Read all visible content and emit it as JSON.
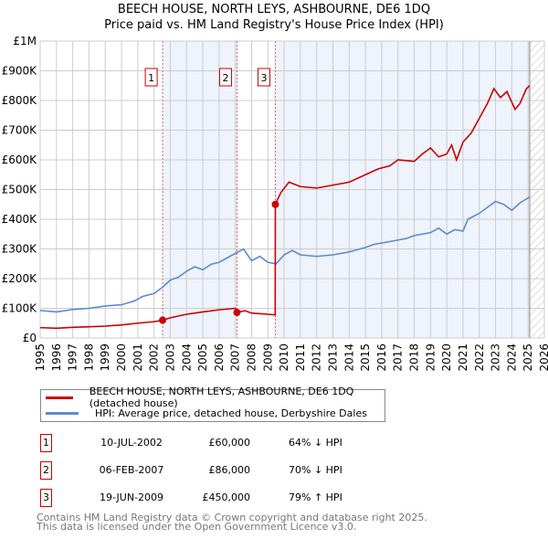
{
  "title": "BEECH HOUSE, NORTH LEYS, ASHBOURNE, DE6 1DQ",
  "subtitle": "Price paid vs. HM Land Registry's House Price Index (HPI)",
  "chart_data": {
    "type": "line",
    "xlim": [
      1995,
      2026
    ],
    "ylim": [
      0,
      1000000
    ],
    "y_ticks": [
      {
        "v": 0,
        "label": "£0"
      },
      {
        "v": 100000,
        "label": "£100K"
      },
      {
        "v": 200000,
        "label": "£200K"
      },
      {
        "v": 300000,
        "label": "£300K"
      },
      {
        "v": 400000,
        "label": "£400K"
      },
      {
        "v": 500000,
        "label": "£500K"
      },
      {
        "v": 600000,
        "label": "£600K"
      },
      {
        "v": 700000,
        "label": "£700K"
      },
      {
        "v": 800000,
        "label": "£800K"
      },
      {
        "v": 900000,
        "label": "£900K"
      },
      {
        "v": 1000000,
        "label": "£1M"
      }
    ],
    "x_ticks": [
      "1995",
      "1996",
      "1997",
      "1998",
      "1999",
      "2000",
      "2001",
      "2002",
      "2003",
      "2004",
      "2005",
      "2006",
      "2007",
      "2008",
      "2009",
      "2010",
      "2011",
      "2012",
      "2013",
      "2014",
      "2015",
      "2016",
      "2017",
      "2018",
      "2019",
      "2020",
      "2021",
      "2022",
      "2023",
      "2024",
      "2025",
      "2026"
    ],
    "series": [
      {
        "name": "BEECH HOUSE, NORTH LEYS, ASHBOURNE, DE6 1DQ (detached house)",
        "color": "#cc0000",
        "points": [
          [
            1995,
            35000
          ],
          [
            1996,
            33000
          ],
          [
            1997,
            36000
          ],
          [
            1998,
            38000
          ],
          [
            1999,
            40000
          ],
          [
            2000,
            44000
          ],
          [
            2001,
            50000
          ],
          [
            2002,
            55000
          ],
          [
            2002.53,
            60000
          ],
          [
            2003,
            68000
          ],
          [
            2004,
            80000
          ],
          [
            2005,
            88000
          ],
          [
            2006,
            95000
          ],
          [
            2007,
            100000
          ],
          [
            2007.1,
            86000
          ],
          [
            2007.6,
            92000
          ],
          [
            2008,
            84000
          ],
          [
            2009,
            80000
          ],
          [
            2009.45,
            78000
          ],
          [
            2009.46,
            450000
          ],
          [
            2009.8,
            490000
          ],
          [
            2010.3,
            525000
          ],
          [
            2011,
            510000
          ],
          [
            2012,
            505000
          ],
          [
            2013,
            515000
          ],
          [
            2014,
            525000
          ],
          [
            2015,
            550000
          ],
          [
            2015.8,
            570000
          ],
          [
            2016.5,
            580000
          ],
          [
            2017,
            600000
          ],
          [
            2018,
            595000
          ],
          [
            2018.5,
            620000
          ],
          [
            2019,
            640000
          ],
          [
            2019.5,
            610000
          ],
          [
            2020,
            620000
          ],
          [
            2020.3,
            650000
          ],
          [
            2020.6,
            600000
          ],
          [
            2021,
            660000
          ],
          [
            2021.5,
            690000
          ],
          [
            2022,
            740000
          ],
          [
            2022.5,
            790000
          ],
          [
            2022.9,
            840000
          ],
          [
            2023.3,
            810000
          ],
          [
            2023.7,
            830000
          ],
          [
            2024.2,
            770000
          ],
          [
            2024.5,
            790000
          ],
          [
            2024.9,
            840000
          ],
          [
            2025.1,
            850000
          ]
        ]
      },
      {
        "name": "HPI: Average price, detached house, Derbyshire Dales",
        "color": "#5b8bd0",
        "points": [
          [
            1995,
            93000
          ],
          [
            1996,
            88000
          ],
          [
            1997,
            96000
          ],
          [
            1998,
            100000
          ],
          [
            1999,
            108000
          ],
          [
            2000,
            112000
          ],
          [
            2000.8,
            125000
          ],
          [
            2001.3,
            140000
          ],
          [
            2002,
            150000
          ],
          [
            2002.5,
            170000
          ],
          [
            2003,
            195000
          ],
          [
            2003.5,
            205000
          ],
          [
            2004,
            225000
          ],
          [
            2004.5,
            240000
          ],
          [
            2005,
            230000
          ],
          [
            2005.5,
            248000
          ],
          [
            2006,
            255000
          ],
          [
            2006.5,
            270000
          ],
          [
            2007,
            285000
          ],
          [
            2007.5,
            300000
          ],
          [
            2008,
            260000
          ],
          [
            2008.5,
            275000
          ],
          [
            2009,
            255000
          ],
          [
            2009.5,
            250000
          ],
          [
            2010,
            280000
          ],
          [
            2010.5,
            295000
          ],
          [
            2011,
            280000
          ],
          [
            2012,
            275000
          ],
          [
            2013,
            280000
          ],
          [
            2014,
            290000
          ],
          [
            2015,
            305000
          ],
          [
            2015.5,
            315000
          ],
          [
            2016,
            320000
          ],
          [
            2017,
            330000
          ],
          [
            2017.5,
            335000
          ],
          [
            2018,
            345000
          ],
          [
            2019,
            355000
          ],
          [
            2019.5,
            370000
          ],
          [
            2020,
            350000
          ],
          [
            2020.5,
            365000
          ],
          [
            2021,
            360000
          ],
          [
            2021.3,
            400000
          ],
          [
            2022,
            420000
          ],
          [
            2022.5,
            440000
          ],
          [
            2023,
            460000
          ],
          [
            2023.5,
            450000
          ],
          [
            2024,
            430000
          ],
          [
            2024.5,
            455000
          ],
          [
            2025.1,
            475000
          ]
        ]
      }
    ],
    "sales": [
      {
        "label": "1",
        "x": 2002.53,
        "y": 60000
      },
      {
        "label": "2",
        "x": 2007.1,
        "y": 86000
      },
      {
        "label": "3",
        "x": 2009.46,
        "y": 450000
      }
    ],
    "shaded_ranges": [
      [
        2002.53,
        2007.1
      ],
      [
        2009.46,
        2025.1
      ]
    ],
    "hatch_from": 2025.1,
    "grid": true
  },
  "legend": {
    "items": [
      "BEECH HOUSE, NORTH LEYS, ASHBOURNE, DE6 1DQ (detached house)",
      "HPI: Average price, detached house, Derbyshire Dales"
    ]
  },
  "transactions": [
    {
      "num": "1",
      "date": "10-JUL-2002",
      "price": "£60,000",
      "hpi": "64% ↓ HPI"
    },
    {
      "num": "2",
      "date": "06-FEB-2007",
      "price": "£86,000",
      "hpi": "70% ↓ HPI"
    },
    {
      "num": "3",
      "date": "19-JUN-2009",
      "price": "£450,000",
      "hpi": "79% ↑ HPI"
    }
  ],
  "footer": {
    "line1": "Contains HM Land Registry data © Crown copyright and database right 2025.",
    "line2": "This data is licensed under the Open Government Licence v3.0."
  }
}
